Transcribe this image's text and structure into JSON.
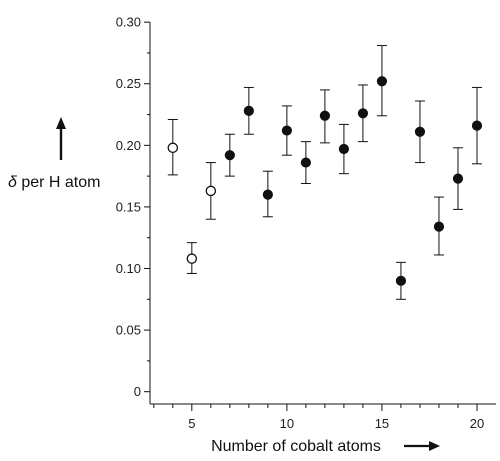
{
  "chart_data": {
    "type": "scatter",
    "xlabel": "Number of cobalt atoms",
    "ylabel_symbol": "δ",
    "ylabel_rest": " per H atom",
    "xlim": [
      2.8,
      21.0
    ],
    "ylim": [
      -0.01,
      0.305
    ],
    "x_ticks": [
      {
        "value": 5,
        "label": "5"
      },
      {
        "value": 10,
        "label": "10"
      },
      {
        "value": 15,
        "label": "15"
      },
      {
        "value": 20,
        "label": "20"
      }
    ],
    "x_minor_ticks": [
      3,
      4,
      6,
      7,
      8,
      9,
      11,
      12,
      13,
      14,
      16,
      17,
      18,
      19
    ],
    "y_ticks": [
      {
        "value": 0,
        "label": "0"
      },
      {
        "value": 0.05,
        "label": "0.05"
      },
      {
        "value": 0.1,
        "label": "0.10"
      },
      {
        "value": 0.15,
        "label": "0.15"
      },
      {
        "value": 0.2,
        "label": "0.20"
      },
      {
        "value": 0.25,
        "label": "0.25"
      },
      {
        "value": 0.3,
        "label": "0.30"
      }
    ],
    "y_minor_ticks": [
      0.025,
      0.075,
      0.125,
      0.175,
      0.225,
      0.275
    ],
    "grid": false,
    "series": [
      {
        "marker": "open-circle",
        "points": [
          {
            "x": 4,
            "y": 0.198,
            "y_low": 0.176,
            "y_high": 0.221
          },
          {
            "x": 5,
            "y": 0.108,
            "y_low": 0.096,
            "y_high": 0.121
          },
          {
            "x": 6,
            "y": 0.163,
            "y_low": 0.14,
            "y_high": 0.186
          }
        ]
      },
      {
        "marker": "filled-circle",
        "points": [
          {
            "x": 7,
            "y": 0.192,
            "y_low": 0.175,
            "y_high": 0.209
          },
          {
            "x": 8,
            "y": 0.228,
            "y_low": 0.209,
            "y_high": 0.247
          },
          {
            "x": 9,
            "y": 0.16,
            "y_low": 0.142,
            "y_high": 0.179
          },
          {
            "x": 10,
            "y": 0.212,
            "y_low": 0.192,
            "y_high": 0.232
          },
          {
            "x": 11,
            "y": 0.186,
            "y_low": 0.169,
            "y_high": 0.203
          },
          {
            "x": 12,
            "y": 0.224,
            "y_low": 0.202,
            "y_high": 0.245
          },
          {
            "x": 13,
            "y": 0.197,
            "y_low": 0.177,
            "y_high": 0.217
          },
          {
            "x": 14,
            "y": 0.226,
            "y_low": 0.203,
            "y_high": 0.249
          },
          {
            "x": 15,
            "y": 0.252,
            "y_low": 0.224,
            "y_high": 0.281
          },
          {
            "x": 16,
            "y": 0.09,
            "y_low": 0.075,
            "y_high": 0.105
          },
          {
            "x": 17,
            "y": 0.211,
            "y_low": 0.186,
            "y_high": 0.236
          },
          {
            "x": 18,
            "y": 0.134,
            "y_low": 0.111,
            "y_high": 0.158
          },
          {
            "x": 19,
            "y": 0.173,
            "y_low": 0.148,
            "y_high": 0.198
          },
          {
            "x": 20,
            "y": 0.216,
            "y_low": 0.185,
            "y_high": 0.247
          }
        ]
      }
    ],
    "colors": {
      "ink": "#111111",
      "marker_fill": "#111111",
      "open_fill": "#ffffff"
    }
  }
}
